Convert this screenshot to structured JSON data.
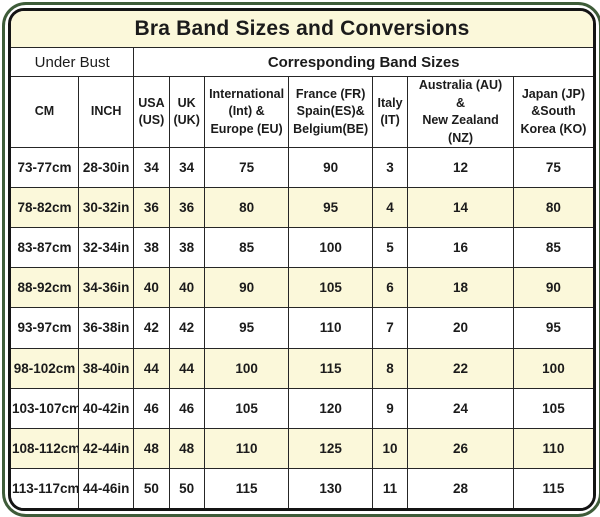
{
  "title": "Bra Band Sizes and Conversions",
  "colors": {
    "outer_frame_green": "#3e5c39",
    "inner_frame_black": "#141414",
    "band_yellow": "#fbf8da",
    "row_white": "#ffffff",
    "grid_line": "#262626",
    "text": "#1b1b1b"
  },
  "header": {
    "under_bust_label": "Under Bust",
    "corresponding_label": "Corresponding Band Sizes",
    "columns": [
      {
        "label": "CM"
      },
      {
        "label": "INCH"
      },
      {
        "label": "USA\n(US)"
      },
      {
        "label": "UK\n(UK)"
      },
      {
        "label": "International\n(Int) &\nEurope (EU)"
      },
      {
        "label": "France (FR)\nSpain(ES)&\nBelgium(BE)"
      },
      {
        "label": "Italy\n(IT)"
      },
      {
        "label": "Australia (AU)\n&\nNew Zealand\n(NZ)"
      },
      {
        "label": "Japan (JP)\n&South\nKorea (KO)"
      }
    ]
  },
  "chart_data": {
    "type": "table",
    "title": "Bra Band Sizes and Conversions",
    "column_groups": [
      {
        "label": "Under Bust",
        "span": 2
      },
      {
        "label": "Corresponding Band Sizes",
        "span": 7
      }
    ],
    "columns": [
      "CM",
      "INCH",
      "USA (US)",
      "UK (UK)",
      "International (Int) & Europe (EU)",
      "France (FR) Spain(ES)& Belgium(BE)",
      "Italy (IT)",
      "Australia (AU) & New Zealand (NZ)",
      "Japan (JP) &South Korea (KO)"
    ],
    "rows": [
      [
        "73-77cm",
        "28-30in",
        "34",
        "34",
        "75",
        "90",
        "3",
        "12",
        "75"
      ],
      [
        "78-82cm",
        "30-32in",
        "36",
        "36",
        "80",
        "95",
        "4",
        "14",
        "80"
      ],
      [
        "83-87cm",
        "32-34in",
        "38",
        "38",
        "85",
        "100",
        "5",
        "16",
        "85"
      ],
      [
        "88-92cm",
        "34-36in",
        "40",
        "40",
        "90",
        "105",
        "6",
        "18",
        "90"
      ],
      [
        "93-97cm",
        "36-38in",
        "42",
        "42",
        "95",
        "110",
        "7",
        "20",
        "95"
      ],
      [
        "98-102cm",
        "38-40in",
        "44",
        "44",
        "100",
        "115",
        "8",
        "22",
        "100"
      ],
      [
        "103-107cm",
        "40-42in",
        "46",
        "46",
        "105",
        "120",
        "9",
        "24",
        "105"
      ],
      [
        "108-112cm",
        "42-44in",
        "48",
        "48",
        "110",
        "125",
        "10",
        "26",
        "110"
      ],
      [
        "113-117cm",
        "44-46in",
        "50",
        "50",
        "115",
        "130",
        "11",
        "28",
        "115"
      ]
    ],
    "layout": {
      "alternating_row_highlight": "every second data row (78-82cm, 88-92cm, 98-102cm, 108-112cm) shaded pale yellow",
      "grid": true
    }
  }
}
